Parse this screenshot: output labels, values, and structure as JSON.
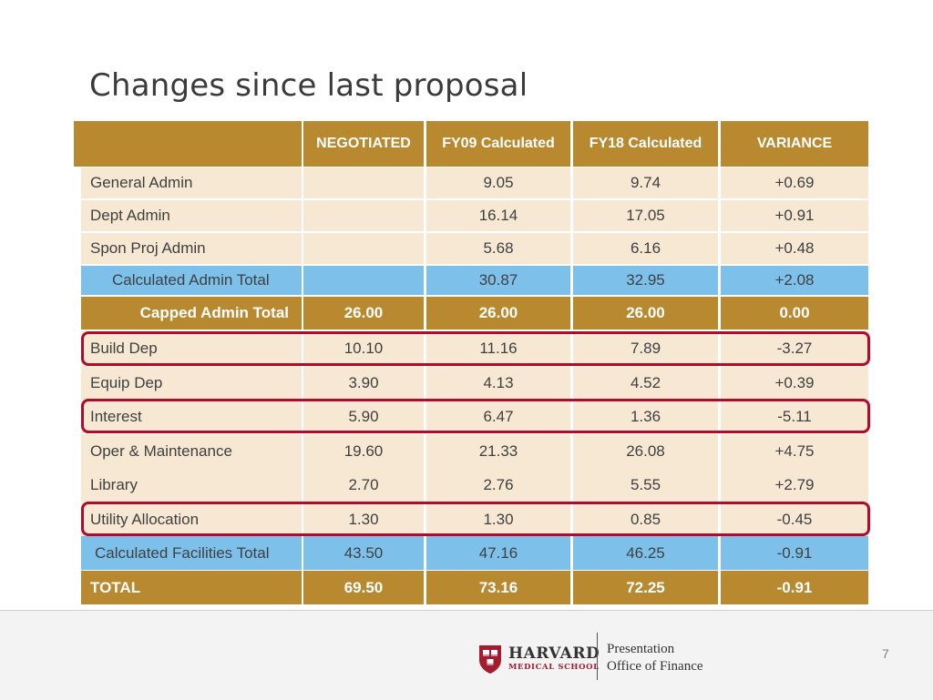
{
  "title": "Changes since last proposal",
  "columns": [
    "",
    "NEGOTIATED",
    "FY09 Calculated",
    "FY18 Calculated",
    "VARIANCE"
  ],
  "rows": [
    {
      "label": "General Admin",
      "negotiated": "",
      "fy09": "9.05",
      "fy18": "9.74",
      "variance": "+0.69",
      "style": "cream"
    },
    {
      "label": "Dept Admin",
      "negotiated": "",
      "fy09": "16.14",
      "fy18": "17.05",
      "variance": "+0.91",
      "style": "cream"
    },
    {
      "label": "Spon Proj Admin",
      "negotiated": "",
      "fy09": "5.68",
      "fy18": "6.16",
      "variance": "+0.48",
      "style": "cream"
    },
    {
      "label": "Calculated Admin Total",
      "negotiated": "",
      "fy09": "30.87",
      "fy18": "32.95",
      "variance": "+2.08",
      "style": "blue"
    },
    {
      "label": "Capped Admin Total",
      "negotiated": "26.00",
      "fy09": "26.00",
      "fy18": "26.00",
      "variance": "0.00",
      "style": "gold"
    },
    {
      "label": "Build Dep",
      "negotiated": "10.10",
      "fy09": "11.16",
      "fy18": "7.89",
      "variance": "-3.27",
      "style": "cream",
      "highlighted": true
    },
    {
      "label": "Equip Dep",
      "negotiated": "3.90",
      "fy09": "4.13",
      "fy18": "4.52",
      "variance": "+0.39",
      "style": "cream"
    },
    {
      "label": "Interest",
      "negotiated": "5.90",
      "fy09": "6.47",
      "fy18": "1.36",
      "variance": "-5.11",
      "style": "cream",
      "highlighted": true
    },
    {
      "label": "Oper & Maintenance",
      "negotiated": "19.60",
      "fy09": "21.33",
      "fy18": "26.08",
      "variance": "+4.75",
      "style": "cream"
    },
    {
      "label": "Library",
      "negotiated": "2.70",
      "fy09": "2.76",
      "fy18": "5.55",
      "variance": "+2.79",
      "style": "cream"
    },
    {
      "label": "Utility Allocation",
      "negotiated": "1.30",
      "fy09": "1.30",
      "fy18": "0.85",
      "variance": "-0.45",
      "style": "cream",
      "highlighted": true
    },
    {
      "label": "Calculated Facilities Total",
      "negotiated": "43.50",
      "fy09": "47.16",
      "fy18": "46.25",
      "variance": "-0.91",
      "style": "blue"
    },
    {
      "label": "TOTAL",
      "negotiated": "69.50",
      "fy09": "73.16",
      "fy18": "72.25",
      "variance": "-0.91",
      "style": "gold"
    }
  ],
  "colors": {
    "gold": "#b9892f",
    "cream": "#f7e8d4",
    "blue": "#7dc1eb",
    "highlight": "#b00b2c"
  },
  "footer": {
    "logo_main": "HARVARD",
    "logo_sub": "MEDICAL SCHOOL",
    "line1": "Presentation",
    "line2": "Office of Finance",
    "page_number": "7"
  }
}
